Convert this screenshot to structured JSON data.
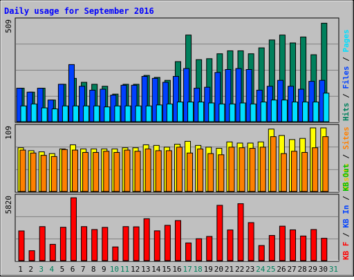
{
  "chart_data": {
    "type": "bar",
    "title": "Daily usage for September 2016",
    "days": [
      "1",
      "2",
      "3",
      "4",
      "5",
      "6",
      "7",
      "8",
      "9",
      "10",
      "11",
      "12",
      "13",
      "14",
      "15",
      "16",
      "17",
      "18",
      "19",
      "20",
      "21",
      "22",
      "23",
      "24",
      "25",
      "26",
      "27",
      "28",
      "29",
      "30",
      "31"
    ],
    "weekend_days": [
      "3",
      "4",
      "10",
      "11",
      "17",
      "18",
      "24",
      "25",
      "31"
    ],
    "panels": [
      {
        "id": "hits",
        "max_label": "509",
        "max": 509,
        "right_labels": [
          {
            "text": "Hits",
            "color": "#00805c"
          },
          {
            "text": " / ",
            "color": "#000000"
          },
          {
            "text": "Files",
            "color": "#0040ff"
          },
          {
            "text": " / ",
            "color": "#000000"
          },
          {
            "text": "Pages",
            "color": "#00e0ff"
          }
        ],
        "series": [
          {
            "name": "Hits",
            "color": "#00805c",
            "values": [
              170,
              150,
              170,
              110,
              190,
              220,
              200,
              190,
              180,
              140,
              190,
              190,
              235,
              225,
              210,
              305,
              440,
              315,
              320,
              345,
              360,
              360,
              345,
              375,
              415,
              440,
              400,
              430,
              340,
              500
            ]
          },
          {
            "name": "Files",
            "color": "#0040ff",
            "values": [
              170,
              150,
              170,
              110,
              190,
              290,
              180,
              160,
              165,
              135,
              185,
              185,
              230,
              220,
              200,
              230,
              270,
              170,
              175,
              250,
              265,
              270,
              265,
              160,
              180,
              210,
              180,
              165,
              205,
              210
            ]
          },
          {
            "name": "Pages",
            "color": "#00e0ff",
            "values": [
              80,
              90,
              70,
              65,
              80,
              80,
              80,
              80,
              75,
              80,
              80,
              80,
              80,
              85,
              90,
              100,
              100,
              100,
              95,
              90,
              90,
              95,
              90,
              100,
              110,
              110,
              100,
              100,
              100,
              145
            ]
          }
        ]
      },
      {
        "id": "visits",
        "max_label": "109",
        "max": 109,
        "right_labels": [
          {
            "text": "Visits",
            "color": "#e8c800"
          },
          {
            "text": " / ",
            "color": "#000000"
          },
          {
            "text": "Sites",
            "color": "#ff8000"
          }
        ],
        "series": [
          {
            "name": "Visits",
            "color": "#ffff00",
            "values": [
              75,
              70,
              68,
              65,
              73,
              80,
              73,
              73,
              73,
              73,
              75,
              75,
              80,
              79,
              76,
              81,
              86,
              79,
              76,
              74,
              85,
              83,
              83,
              85,
              107,
              96,
              89,
              91,
              109,
              109
            ]
          },
          {
            "name": "Sites",
            "color": "#ff8000",
            "values": [
              71,
              66,
              62,
              60,
              72,
              71,
              67,
              67,
              69,
              67,
              71,
              69,
              73,
              70,
              70,
              76,
              66,
              73,
              65,
              63,
              76,
              75,
              74,
              76,
              94,
              65,
              69,
              67,
              75,
              94
            ]
          }
        ]
      },
      {
        "id": "kbytes",
        "max_label": "5820",
        "max": 5820,
        "right_labels": [
          {
            "text": "KB F",
            "color": "#ff0000"
          },
          {
            "text": " / ",
            "color": "#000000"
          },
          {
            "text": "KB In",
            "color": "#0040ff"
          },
          {
            "text": " / ",
            "color": "#000000"
          },
          {
            "text": "KB Out",
            "color": "#00c000"
          }
        ],
        "series": [
          {
            "name": "KB F",
            "color": "#ff0000",
            "values": [
              2750,
              920,
              3150,
              1510,
              3090,
              5820,
              3150,
              2880,
              3080,
              1270,
              3150,
              3130,
              3880,
              2760,
              3270,
              3710,
              1640,
              2030,
              2240,
              5120,
              2840,
              5270,
              3520,
              1400,
              2330,
              3190,
              2850,
              2280,
              2880,
              2070
            ]
          }
        ]
      }
    ]
  }
}
